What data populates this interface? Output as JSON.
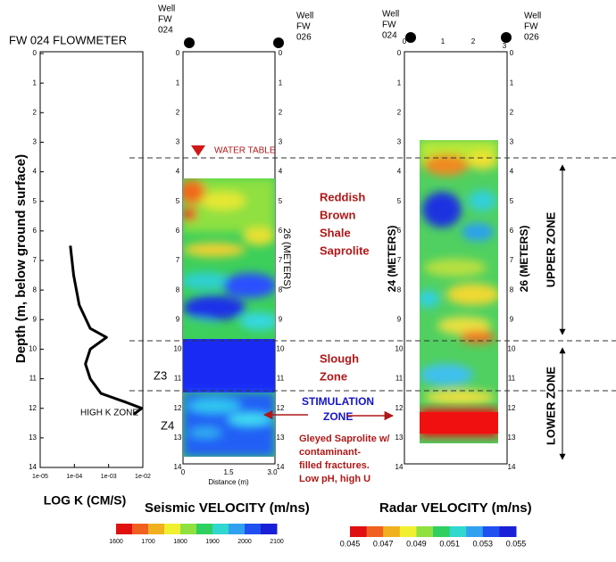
{
  "chart_data": {
    "type": "line",
    "title": "FW 024 FLOWMETER",
    "y_label": "Depth (m, below ground surface)",
    "x_label": "LOG K (CM/S)",
    "x": [
      7.6e-05,
      9.5e-05,
      0.000138,
      0.00029,
      0.00087,
      0.00029,
      0.00021,
      0.00029,
      0.0006,
      0.0033,
      0.0093,
      0.0055
    ],
    "values": [
      6.5,
      7.5,
      8.5,
      9.3,
      9.6,
      10.0,
      10.5,
      11.0,
      11.5,
      11.8,
      12.0,
      12.2
    ],
    "color": "#000000",
    "log_x": true,
    "xlim": [
      1e-05,
      0.01
    ],
    "xticks": [
      {
        "value": 1e-05,
        "label": "1e-05"
      },
      {
        "value": 0.0001,
        "label": "1e-04"
      },
      {
        "value": 0.001,
        "label": "1e-03"
      },
      {
        "value": 0.01,
        "label": "1e-02"
      }
    ],
    "ylim": [
      14,
      0
    ],
    "yticks": [
      0,
      1,
      2,
      3,
      4,
      5,
      6,
      7,
      8,
      9,
      10,
      11,
      12,
      13,
      14
    ]
  },
  "wells": [
    [
      "Well",
      "FW",
      "024"
    ],
    [
      "Well",
      "FW",
      "026"
    ],
    [
      "Well",
      "FW",
      "024"
    ],
    [
      "Well",
      "FW",
      "026"
    ]
  ],
  "annotations": {
    "water_table": "WATER TABLE",
    "reddish": [
      "Reddish",
      "Brown",
      "Shale",
      "Saprolite"
    ],
    "slough": [
      "Slough",
      "Zone"
    ],
    "stimulation": [
      "STIMULATION",
      "ZONE"
    ],
    "gleyed": [
      "Gleyed Saprolite w/",
      "contaminant-",
      "filled fractures.",
      "Low pH, high U"
    ],
    "high_k": "HIGH K ZONE",
    "z3": "Z3",
    "z4": "Z4",
    "upper": "UPPER ZONE",
    "lower": "LOWER ZONE"
  },
  "seismic": {
    "title": "Seismic VELOCITY (m/ns)",
    "depth_ticks": [
      "0",
      "1",
      "2",
      "3",
      "4",
      "5",
      "6",
      "7",
      "8",
      "9",
      "10",
      "11",
      "12",
      "13",
      "14"
    ],
    "distance_label": "Distance (m)",
    "distance_ticks": [
      "0",
      "1.5",
      "3.0"
    ],
    "side_label": "26 (METERS)",
    "colorbar_ticks": [
      "1600",
      "1700",
      "1800",
      "1900",
      "2000",
      "2100"
    ]
  },
  "radar": {
    "title": "Radar VELOCITY (m/ns)",
    "depth_ticks": [
      "0",
      "1",
      "2",
      "3",
      "4",
      "5",
      "6",
      "7",
      "8",
      "9",
      "10",
      "11",
      "12",
      "13",
      "14"
    ],
    "top_ticks": [
      "0",
      "1",
      "2",
      "3"
    ],
    "left_label": "24 (METERS)",
    "right_label": "26 (METERS)",
    "colorbar_ticks": [
      "0.045",
      "0.047",
      "0.049",
      "0.051",
      "0.053",
      "0.055"
    ]
  }
}
